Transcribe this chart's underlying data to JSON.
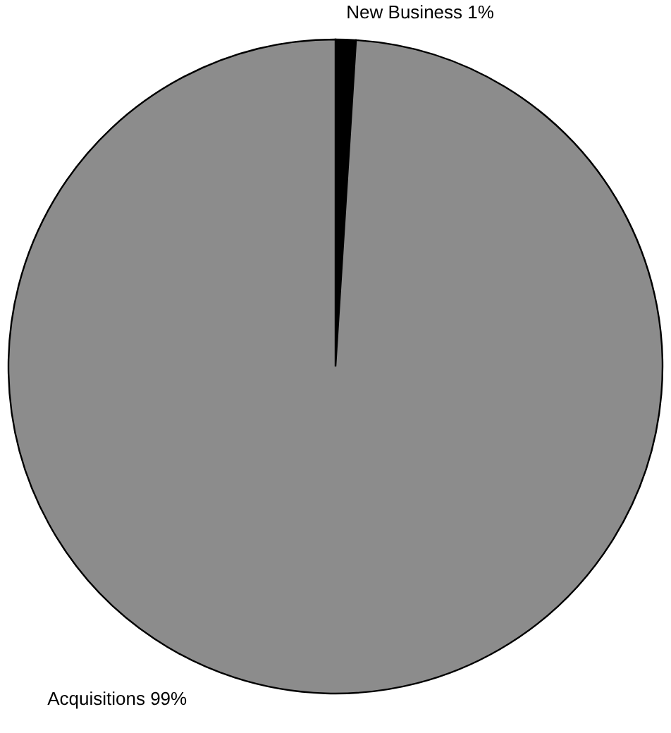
{
  "chart_data": {
    "type": "pie",
    "categories": [
      "New Business",
      "Acquisitions"
    ],
    "values": [
      1,
      99
    ],
    "value_labels": [
      "1%",
      "99%"
    ],
    "colors": [
      "#000000",
      "#8c8c8c"
    ]
  }
}
